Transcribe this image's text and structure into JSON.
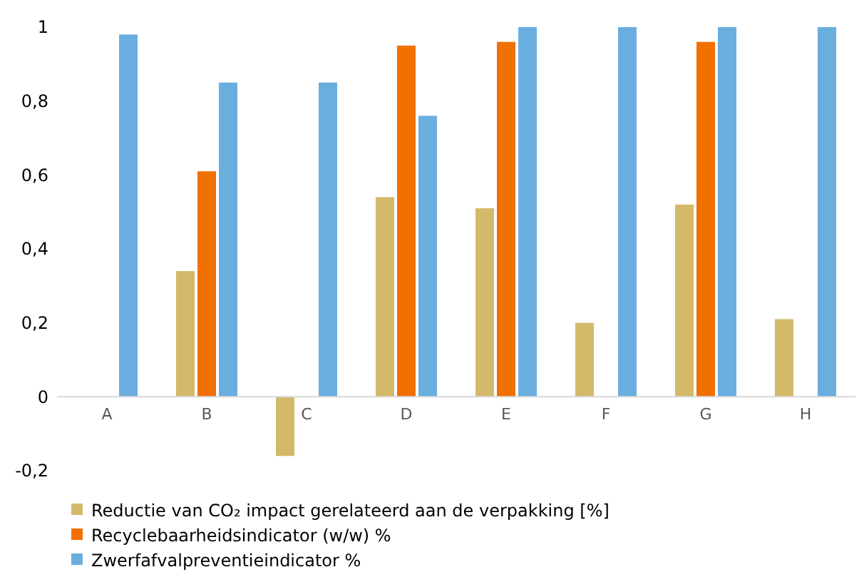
{
  "chart_data": {
    "type": "bar",
    "categories": [
      "A",
      "B",
      "C",
      "D",
      "E",
      "F",
      "G",
      "H"
    ],
    "series": [
      {
        "name": "Reductie van CO₂ impact gerelateerd aan de verpakking [%]",
        "color": "#d4b96a",
        "values": [
          null,
          0.34,
          -0.16,
          0.54,
          0.51,
          0.2,
          0.52,
          0.21
        ]
      },
      {
        "name": "Recyclebaarheidsindicator (w/w) %",
        "color": "#f07000",
        "values": [
          null,
          0.61,
          null,
          0.95,
          0.96,
          null,
          0.96,
          null
        ]
      },
      {
        "name": "Zwerfafvalpreventieindicator %",
        "color": "#6aaee0",
        "values": [
          0.98,
          0.85,
          0.85,
          0.76,
          1,
          1,
          1,
          1
        ]
      }
    ],
    "ylim": [
      -0.2,
      1
    ],
    "yticks": [
      {
        "value": -0.2,
        "label": "-0,2"
      },
      0,
      {
        "value": 0.2,
        "label": "0,2"
      },
      {
        "value": 0.4,
        "label": "0,4"
      },
      {
        "value": 0.6,
        "label": "0,6"
      },
      {
        "value": 0.8,
        "label": "0,8"
      },
      1
    ],
    "grid": false,
    "legend": "bottom"
  }
}
